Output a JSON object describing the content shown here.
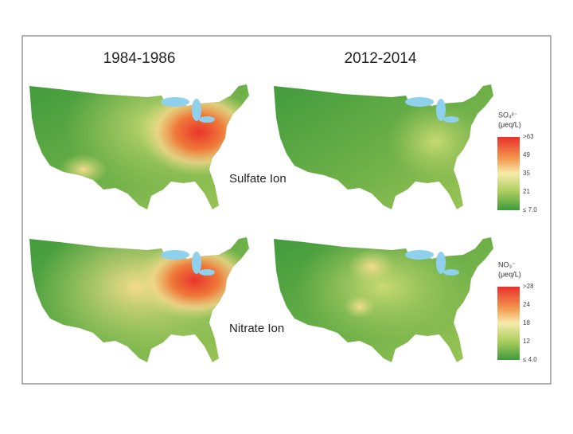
{
  "columns": [
    "1984-1986",
    "2012-2014"
  ],
  "rows": [
    "Sulfate Ion",
    "Nitrate Ion"
  ],
  "legends": [
    {
      "title": "SO₄²⁻",
      "unit": "(μeq/L)",
      "labels": [
        ">63",
        "49",
        "35",
        "21",
        "≤ 7.0"
      ]
    },
    {
      "title": "NO₃⁻",
      "unit": "(μeq/L)",
      "labels": [
        ">28",
        "24",
        "18",
        "12",
        "≤ 4.0"
      ]
    }
  ]
}
